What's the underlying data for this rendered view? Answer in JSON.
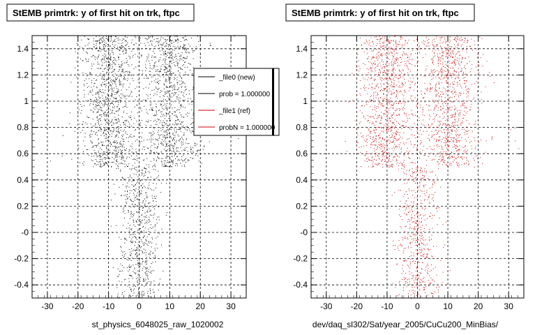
{
  "colors": {
    "black_series": "#000000",
    "red_series": "#cc0000",
    "frame": "#000000",
    "grid": "#000000",
    "background": "#ffffff"
  },
  "chart_data": [
    {
      "type": "scatter",
      "title": "StEMB primtrk: y of first hit on trk, ftpc",
      "xlabel": "st_physics_6048025_raw_1020002",
      "ylabel": "",
      "xlim": [
        -35,
        35
      ],
      "ylim": [
        -0.5,
        1.5
      ],
      "x_ticks": [
        -30,
        -20,
        -10,
        0,
        10,
        20,
        30
      ],
      "x_tick_labels": [
        "-30",
        "-20",
        "-10",
        "0",
        "10",
        "20",
        "30"
      ],
      "y_ticks": [
        -0.4,
        -0.2,
        0.0,
        0.2,
        0.4,
        0.6,
        0.8,
        1.0,
        1.2,
        1.4
      ],
      "y_tick_labels": [
        "-0.4",
        "-0.2",
        "-0",
        "0.2",
        "0.4",
        "0.6",
        "0.8",
        "1",
        "1.2",
        "1.4"
      ],
      "grid": true,
      "legend_position": "top-right",
      "legend": [
        {
          "label": "_file0 (new)",
          "color": "#000000"
        },
        {
          "label": "prob = 1.000000",
          "color": "#000000"
        },
        {
          "label": "_file1 (ref)",
          "color": "#cc0000"
        },
        {
          "label": "probN = 1.000000",
          "color": "#cc0000"
        }
      ],
      "series": [
        {
          "color": "#000000",
          "clusters": [
            {
              "x_center": -10,
              "x_spread": 4.5,
              "y_range": [
                0.5,
                1.5
              ],
              "points": 1100
            },
            {
              "x_center": 10,
              "x_spread": 4.5,
              "y_range": [
                0.5,
                1.5
              ],
              "points": 1000
            },
            {
              "x_center": 0,
              "x_spread": 3.5,
              "y_range": [
                -0.5,
                0.5
              ],
              "points": 650
            },
            {
              "x_center": 3,
              "x_spread": 12,
              "y_range": [
                0.5,
                1.5
              ],
              "points": 160
            }
          ]
        }
      ]
    },
    {
      "type": "scatter",
      "title": "StEMB primtrk: y of first hit on trk, ftpc",
      "xlabel": "dev/daq_sl302/Sat/year_2005/CuCu200_MinBias/",
      "ylabel": "",
      "xlim": [
        -35,
        35
      ],
      "ylim": [
        -0.5,
        1.5
      ],
      "x_ticks": [
        -30,
        -20,
        -10,
        0,
        10,
        20,
        30
      ],
      "x_tick_labels": [
        "-30",
        "-20",
        "-10",
        "0",
        "10",
        "20",
        "30"
      ],
      "y_ticks": [
        -0.4,
        -0.2,
        0.0,
        0.2,
        0.4,
        0.6,
        0.8,
        1.0,
        1.2,
        1.4
      ],
      "y_tick_labels": [
        "-0.4",
        "-0.2",
        "-0",
        "0.2",
        "0.4",
        "0.6",
        "0.8",
        "1",
        "1.2",
        "1.4"
      ],
      "grid": true,
      "series": [
        {
          "color": "#cc0000",
          "clusters": [
            {
              "x_center": -10,
              "x_spread": 4.5,
              "y_range": [
                0.5,
                1.5
              ],
              "points": 1000
            },
            {
              "x_center": 10,
              "x_spread": 4.5,
              "y_range": [
                0.5,
                1.5
              ],
              "points": 900
            },
            {
              "x_center": 0,
              "x_spread": 3.5,
              "y_range": [
                -0.5,
                0.5
              ],
              "points": 550
            },
            {
              "x_center": 3,
              "x_spread": 12,
              "y_range": [
                0.5,
                1.5
              ],
              "points": 140
            }
          ]
        }
      ]
    }
  ]
}
